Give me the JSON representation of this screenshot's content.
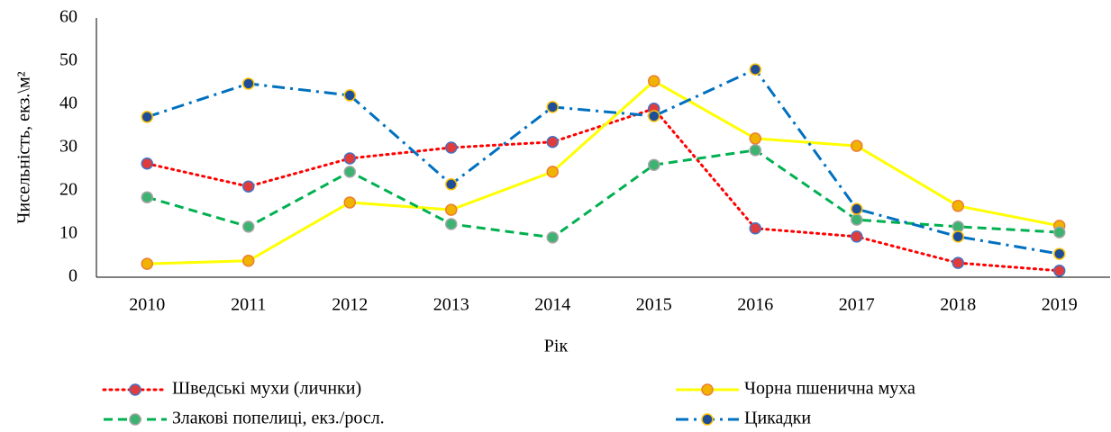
{
  "chart_data": {
    "type": "line",
    "xlabel": "Рік",
    "ylabel": "Чисельність, екз.\\м²",
    "categories": [
      "2010",
      "2011",
      "2012",
      "2013",
      "2014",
      "2015",
      "2016",
      "2017",
      "2018",
      "2019"
    ],
    "series": [
      {
        "name": "Шведські мухи (личнки)",
        "color": "#ff0000",
        "marker_color": "#e03c3c",
        "marker_edge": "#4472c4",
        "linestyle": "dotted",
        "values": [
          26.3,
          21,
          27.5,
          30,
          31.3,
          39,
          11.3,
          9.4,
          3.3,
          1.5
        ]
      },
      {
        "name": "Чорна пшенична муха",
        "color": "#ffff00",
        "marker_color": "#f0b400",
        "marker_edge": "#ed7d31",
        "linestyle": "solid",
        "values": [
          3.1,
          3.8,
          17.3,
          15.6,
          24.4,
          45.4,
          32.1,
          30.4,
          16.5,
          11.9
        ]
      },
      {
        "name": "Злакові попелиці, екз./росл.",
        "color": "#00b050",
        "marker_color": "#3cb371",
        "marker_edge": "#a5a5a5",
        "linestyle": "dashed",
        "values": [
          18.5,
          11.7,
          24.4,
          12.3,
          9.2,
          26,
          29.4,
          13.3,
          11.7,
          10.4
        ]
      },
      {
        "name": "Цикадки",
        "color": "#0070c0",
        "marker_color": "#1f4e99",
        "marker_edge": "#ffc000",
        "linestyle": "dashdot",
        "values": [
          37.1,
          44.8,
          42.1,
          21.5,
          39.4,
          37.3,
          48.1,
          15.8,
          9.4,
          5.4
        ]
      }
    ],
    "ylim": [
      0,
      60
    ],
    "yticks": [
      0,
      10,
      20,
      30,
      40,
      50,
      60
    ],
    "grid": false
  }
}
